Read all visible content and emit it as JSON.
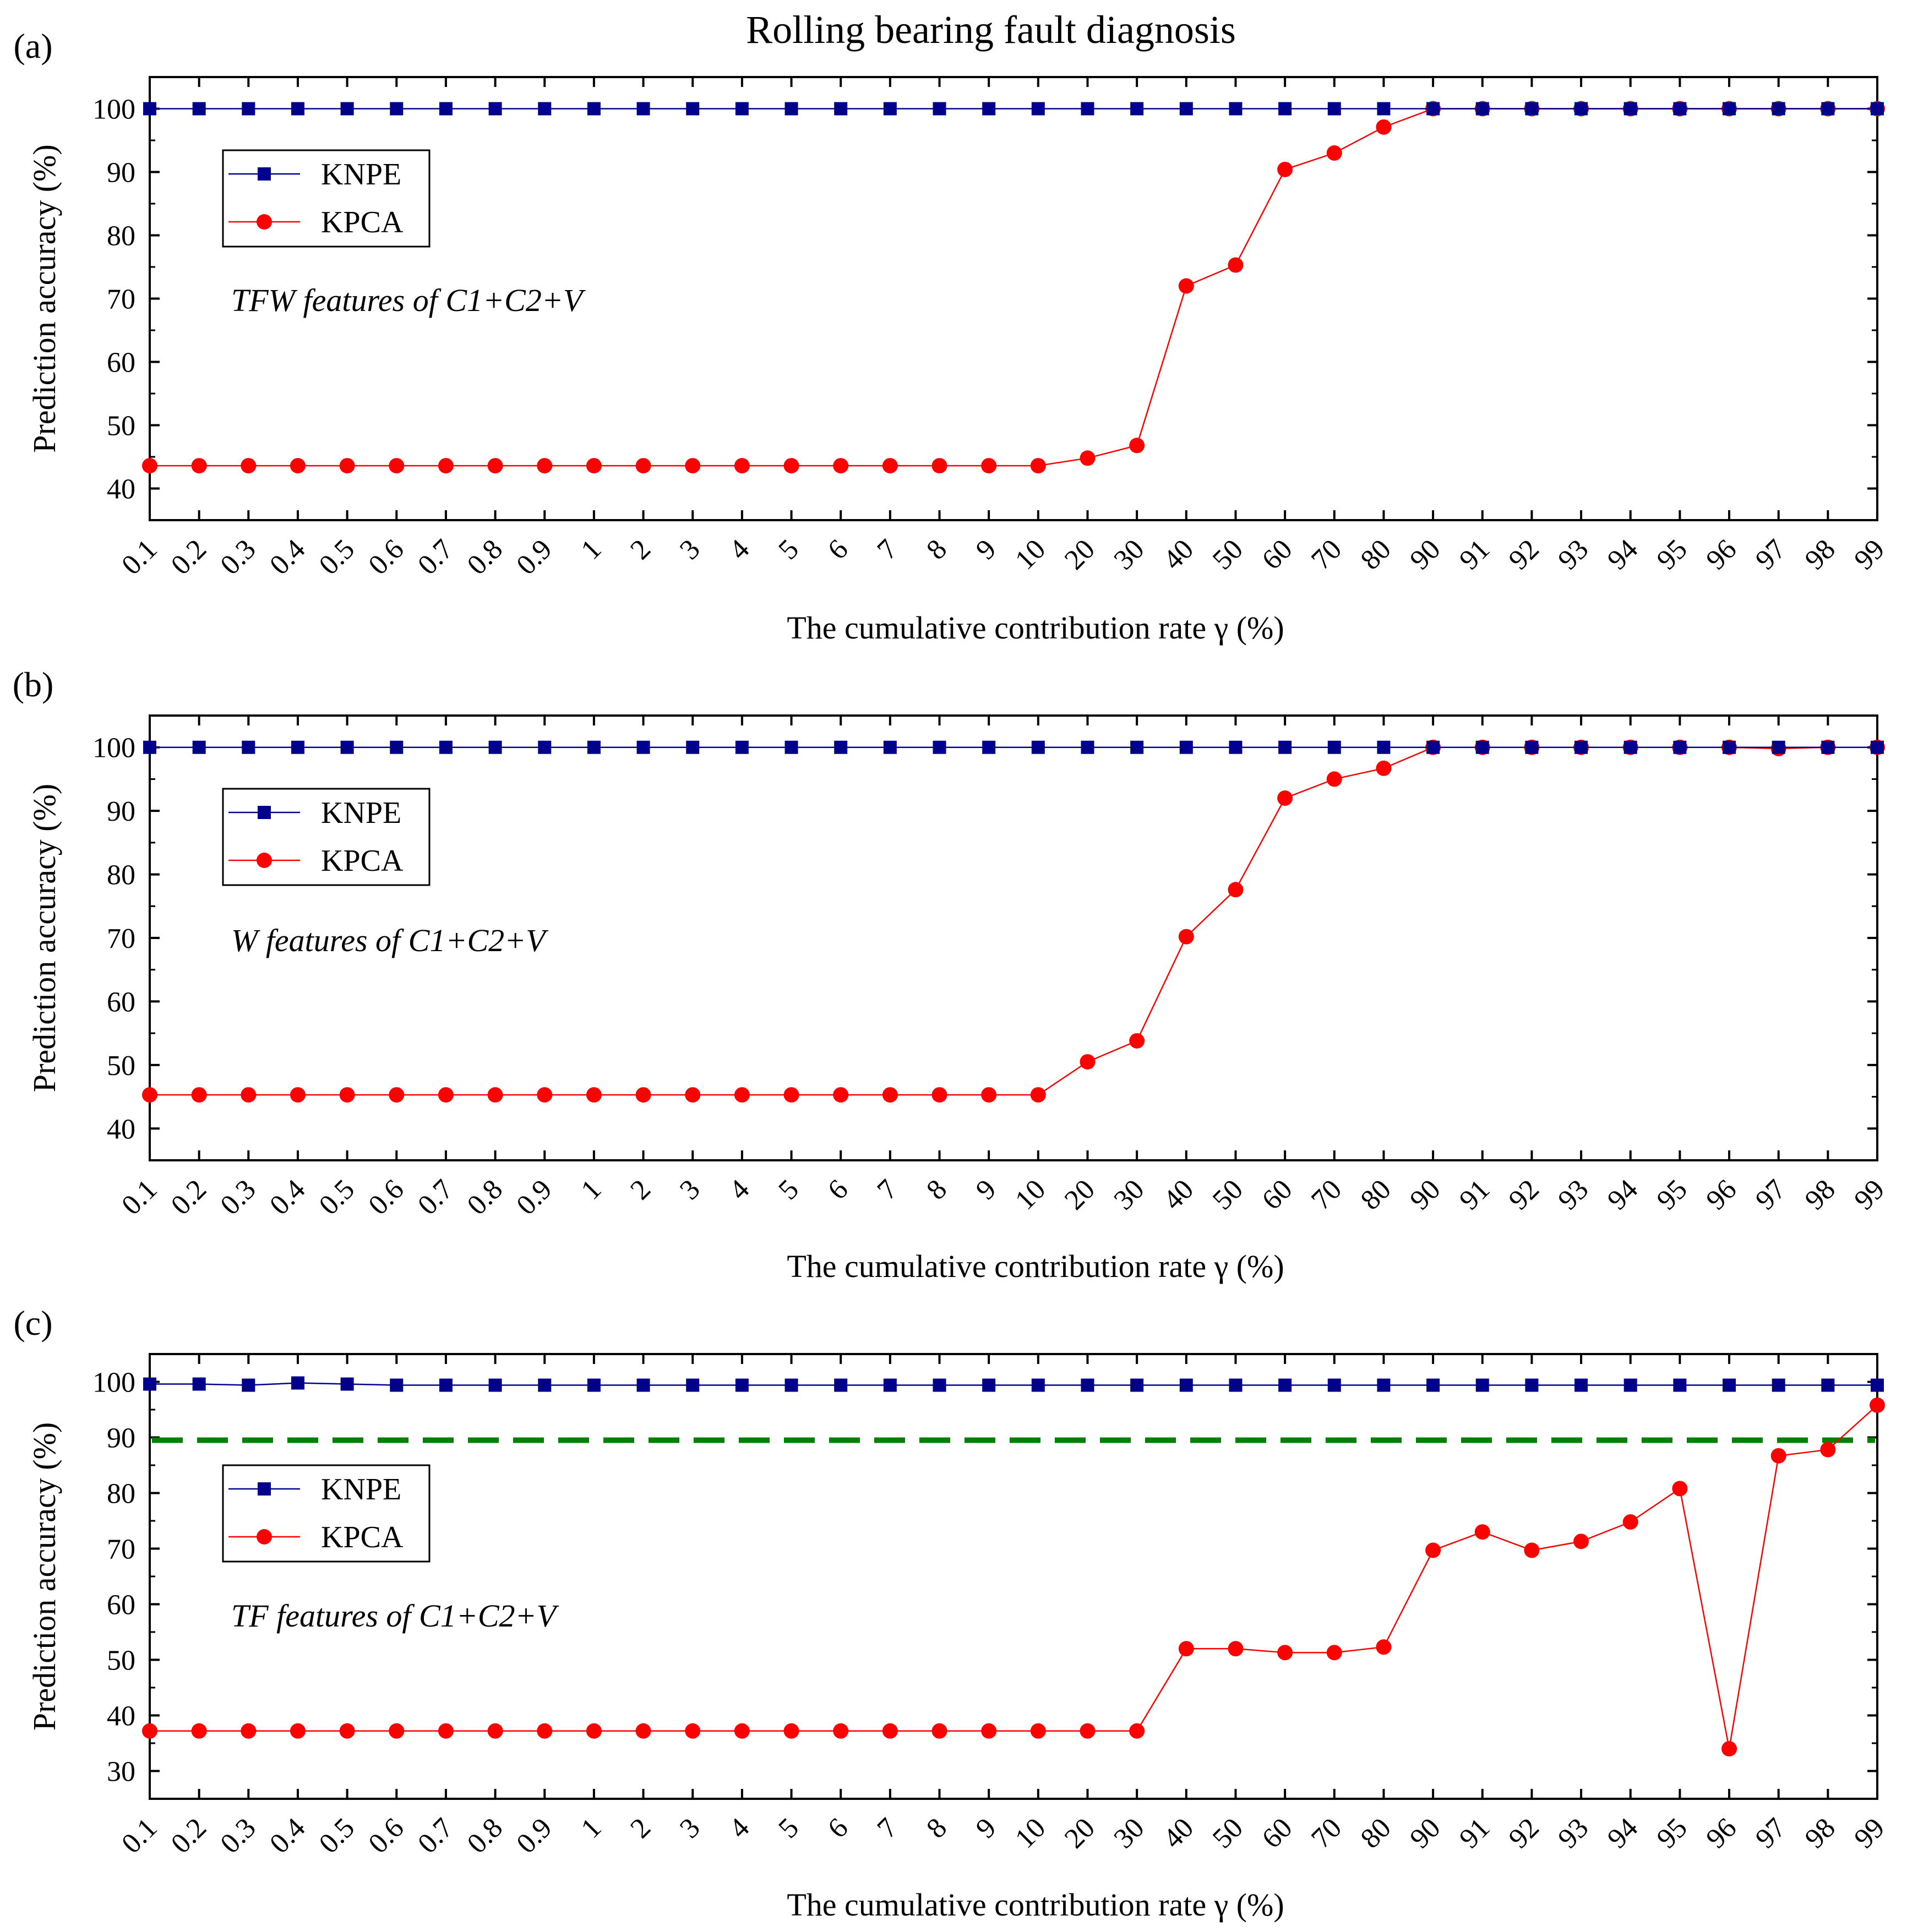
{
  "figure_title": "Rolling bearing fault diagnosis",
  "colors": {
    "knpe": "#00008B",
    "kpca": "#FF0000",
    "threshold": "#008000",
    "axis": "#000000"
  },
  "chart_data": [
    {
      "type": "line",
      "panel_label": "(a)",
      "annotation": "TFW features of C1+C2+V",
      "xlabel": "The cumulative contribution rate γ (%)",
      "ylabel": "Prediction accuracy (%)",
      "ylim": [
        35,
        105
      ],
      "yticks": [
        40,
        50,
        60,
        70,
        80,
        90,
        100
      ],
      "categories": [
        "0.1",
        "0.2",
        "0.3",
        "0.4",
        "0.5",
        "0.6",
        "0.7",
        "0.8",
        "0.9",
        "1",
        "2",
        "3",
        "4",
        "5",
        "6",
        "7",
        "8",
        "9",
        "10",
        "20",
        "30",
        "40",
        "50",
        "60",
        "70",
        "80",
        "90",
        "91",
        "92",
        "93",
        "94",
        "95",
        "96",
        "97",
        "98",
        "99"
      ],
      "legend": [
        "KNPE",
        "KPCA"
      ],
      "series": [
        {
          "name": "KNPE",
          "marker": "square",
          "values": [
            100,
            100,
            100,
            100,
            100,
            100,
            100,
            100,
            100,
            100,
            100,
            100,
            100,
            100,
            100,
            100,
            100,
            100,
            100,
            100,
            100,
            100,
            100,
            100,
            100,
            100,
            100,
            100,
            100,
            100,
            100,
            100,
            100,
            100,
            100,
            100
          ]
        },
        {
          "name": "KPCA",
          "marker": "circle",
          "values": [
            43.6,
            43.6,
            43.6,
            43.6,
            43.6,
            43.6,
            43.6,
            43.6,
            43.6,
            43.6,
            43.6,
            43.6,
            43.6,
            43.6,
            43.6,
            43.6,
            43.6,
            43.6,
            43.6,
            44.8,
            46.8,
            72,
            75.3,
            90.4,
            93,
            97.1,
            100,
            100,
            100,
            100,
            100,
            100,
            100,
            100,
            100,
            100
          ]
        }
      ]
    },
    {
      "type": "line",
      "panel_label": "(b)",
      "annotation": "W features of C1+C2+V",
      "xlabel": "The cumulative contribution rate γ (%)",
      "ylabel": "Prediction accuracy (%)",
      "ylim": [
        35,
        105
      ],
      "yticks": [
        40,
        50,
        60,
        70,
        80,
        90,
        100
      ],
      "categories": [
        "0.1",
        "0.2",
        "0.3",
        "0.4",
        "0.5",
        "0.6",
        "0.7",
        "0.8",
        "0.9",
        "1",
        "2",
        "3",
        "4",
        "5",
        "6",
        "7",
        "8",
        "9",
        "10",
        "20",
        "30",
        "40",
        "50",
        "60",
        "70",
        "80",
        "90",
        "91",
        "92",
        "93",
        "94",
        "95",
        "96",
        "97",
        "98",
        "99"
      ],
      "legend": [
        "KNPE",
        "KPCA"
      ],
      "series": [
        {
          "name": "KNPE",
          "marker": "square",
          "values": [
            100,
            100,
            100,
            100,
            100,
            100,
            100,
            100,
            100,
            100,
            100,
            100,
            100,
            100,
            100,
            100,
            100,
            100,
            100,
            100,
            100,
            100,
            100,
            100,
            100,
            100,
            100,
            100,
            100,
            100,
            100,
            100,
            100,
            100,
            100,
            100
          ]
        },
        {
          "name": "KPCA",
          "marker": "circle",
          "values": [
            45.3,
            45.3,
            45.3,
            45.3,
            45.3,
            45.3,
            45.3,
            45.3,
            45.3,
            45.3,
            45.3,
            45.3,
            45.3,
            45.3,
            45.3,
            45.3,
            45.3,
            45.3,
            45.3,
            50.5,
            53.8,
            70.2,
            77.6,
            92,
            95,
            96.7,
            100,
            100,
            100,
            100,
            100,
            100,
            100,
            99.8,
            100,
            100
          ]
        }
      ]
    },
    {
      "type": "line",
      "panel_label": "(c)",
      "annotation": "TF features of C1+C2+V",
      "xlabel": "The cumulative contribution rate γ (%)",
      "ylabel": "Prediction accuracy (%)",
      "ylim": [
        25,
        105
      ],
      "yticks": [
        30,
        40,
        50,
        60,
        70,
        80,
        90,
        100
      ],
      "categories": [
        "0.1",
        "0.2",
        "0.3",
        "0.4",
        "0.5",
        "0.6",
        "0.7",
        "0.8",
        "0.9",
        "1",
        "2",
        "3",
        "4",
        "5",
        "6",
        "7",
        "8",
        "9",
        "10",
        "20",
        "30",
        "40",
        "50",
        "60",
        "70",
        "80",
        "90",
        "91",
        "92",
        "93",
        "94",
        "95",
        "96",
        "97",
        "98",
        "99"
      ],
      "legend": [
        "KNPE",
        "KPCA"
      ],
      "threshold": 89.5,
      "series": [
        {
          "name": "KNPE",
          "marker": "square",
          "values": [
            99.6,
            99.6,
            99.4,
            99.8,
            99.6,
            99.4,
            99.4,
            99.4,
            99.4,
            99.4,
            99.4,
            99.4,
            99.4,
            99.4,
            99.4,
            99.4,
            99.4,
            99.4,
            99.4,
            99.4,
            99.4,
            99.4,
            99.4,
            99.4,
            99.4,
            99.4,
            99.4,
            99.4,
            99.4,
            99.4,
            99.4,
            99.4,
            99.4,
            99.4,
            99.4,
            99.4
          ]
        },
        {
          "name": "KPCA",
          "marker": "circle",
          "values": [
            37.2,
            37.2,
            37.2,
            37.2,
            37.2,
            37.2,
            37.2,
            37.2,
            37.2,
            37.2,
            37.2,
            37.2,
            37.2,
            37.2,
            37.2,
            37.2,
            37.2,
            37.2,
            37.2,
            37.2,
            37.2,
            52,
            52,
            51.3,
            51.3,
            52.3,
            69.7,
            73,
            69.7,
            71.3,
            74.8,
            80.8,
            34,
            86.7,
            87.8,
            95.8
          ]
        }
      ]
    }
  ]
}
